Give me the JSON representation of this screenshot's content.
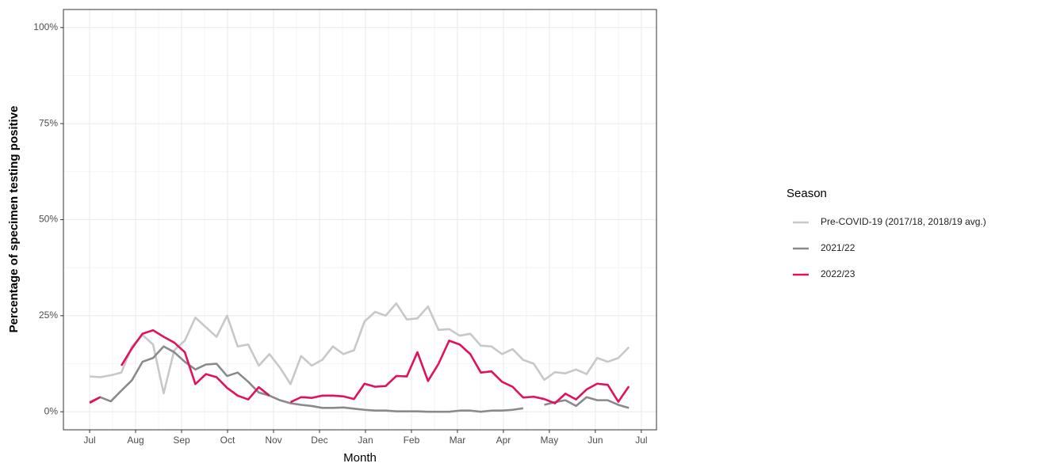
{
  "chart_data": {
    "type": "line",
    "x_label": "Month",
    "y_label": "Percentage of specimen testing positive",
    "legend_title": "Season",
    "legend": "right",
    "grid": true,
    "xlim": [
      -0.57,
      12.33
    ],
    "ylim": [
      -4.7,
      104.7
    ],
    "xticks": [
      {
        "value": 0,
        "label": "Jul"
      },
      {
        "value": 1,
        "label": "Aug"
      },
      {
        "value": 2,
        "label": "Sep"
      },
      {
        "value": 3,
        "label": "Oct"
      },
      {
        "value": 4,
        "label": "Nov"
      },
      {
        "value": 5,
        "label": "Dec"
      },
      {
        "value": 6,
        "label": "Jan"
      },
      {
        "value": 7,
        "label": "Feb"
      },
      {
        "value": 8,
        "label": "Mar"
      },
      {
        "value": 9,
        "label": "Apr"
      },
      {
        "value": 10,
        "label": "May"
      },
      {
        "value": 11,
        "label": "Jun"
      },
      {
        "value": 12,
        "label": "Jul"
      }
    ],
    "yticks": [
      {
        "value": 0,
        "label": "0%"
      },
      {
        "value": 25,
        "label": "25%"
      },
      {
        "value": 50,
        "label": "50%"
      },
      {
        "value": 75,
        "label": "75%"
      },
      {
        "value": 100,
        "label": "100%"
      }
    ],
    "x": [
      0,
      0.23,
      0.46,
      0.69,
      0.92,
      1.15,
      1.38,
      1.61,
      1.84,
      2.07,
      2.3,
      2.53,
      2.76,
      2.99,
      3.22,
      3.45,
      3.68,
      3.91,
      4.14,
      4.37,
      4.6,
      4.83,
      5.06,
      5.29,
      5.52,
      5.75,
      5.98,
      6.21,
      6.44,
      6.67,
      6.9,
      7.13,
      7.36,
      7.59,
      7.82,
      8.05,
      8.28,
      8.51,
      8.74,
      8.97,
      9.2,
      9.43,
      9.66,
      9.89,
      10.12,
      10.35,
      10.58,
      10.81,
      11.04,
      11.27,
      11.5,
      11.73
    ],
    "series": [
      {
        "name": "Pre-COVID-19 (2017/18, 2018/19 avg.)",
        "color": "#c8c8c8",
        "values": [
          9.2,
          9.0,
          9.5,
          10.2,
          17,
          20,
          17.5,
          4.8,
          16,
          18.5,
          24.5,
          22,
          19.5,
          25,
          17,
          17.5,
          12,
          15,
          11.5,
          7.2,
          14.5,
          12,
          13.5,
          17,
          15,
          16,
          23.5,
          26,
          25,
          28.2,
          24,
          24.3,
          27.4,
          21.3,
          21.5,
          19.8,
          20.3,
          17.2,
          17,
          15,
          16.3,
          13.5,
          12.5,
          8.3,
          10.3,
          10,
          11,
          9.8,
          14,
          13,
          14,
          16.8
        ]
      },
      {
        "name": "2021/22",
        "color": "#8a8a8a",
        "values": [
          2.5,
          3.8,
          2.7,
          5.5,
          8.2,
          13,
          14,
          17,
          15.5,
          13,
          11,
          12.3,
          12.5,
          9.3,
          10.2,
          7.8,
          5,
          4.2,
          3,
          2.2,
          1.8,
          1.5,
          1,
          1,
          1.1,
          0.8,
          0.5,
          0.3,
          0.3,
          0.1,
          0.1,
          0.1,
          0,
          0,
          0,
          0.3,
          0.3,
          0,
          0.3,
          0.3,
          0.5,
          0.9,
          null,
          1.8,
          2.5,
          3,
          1.5,
          3.8,
          3,
          3,
          1.8,
          1
        ]
      },
      {
        "name": "2022/23",
        "color": "#e0115f",
        "values": [
          2.3,
          3.8,
          null,
          12,
          16.5,
          20.3,
          21.2,
          19.5,
          18,
          15.5,
          7.2,
          9.8,
          9,
          6.2,
          4.2,
          3.2,
          6.4,
          4.2,
          null,
          2.5,
          3.8,
          3.6,
          4.2,
          4.2,
          4,
          3.3,
          7.3,
          6.5,
          6.7,
          9.3,
          9.2,
          15.5,
          8,
          12.5,
          18.5,
          17.5,
          15,
          10.2,
          10.5,
          7.8,
          6.5,
          3.7,
          3.9,
          3.3,
          2.2,
          4.7,
          3.2,
          5.8,
          7.3,
          7,
          2.6,
          6.6
        ]
      }
    ]
  }
}
